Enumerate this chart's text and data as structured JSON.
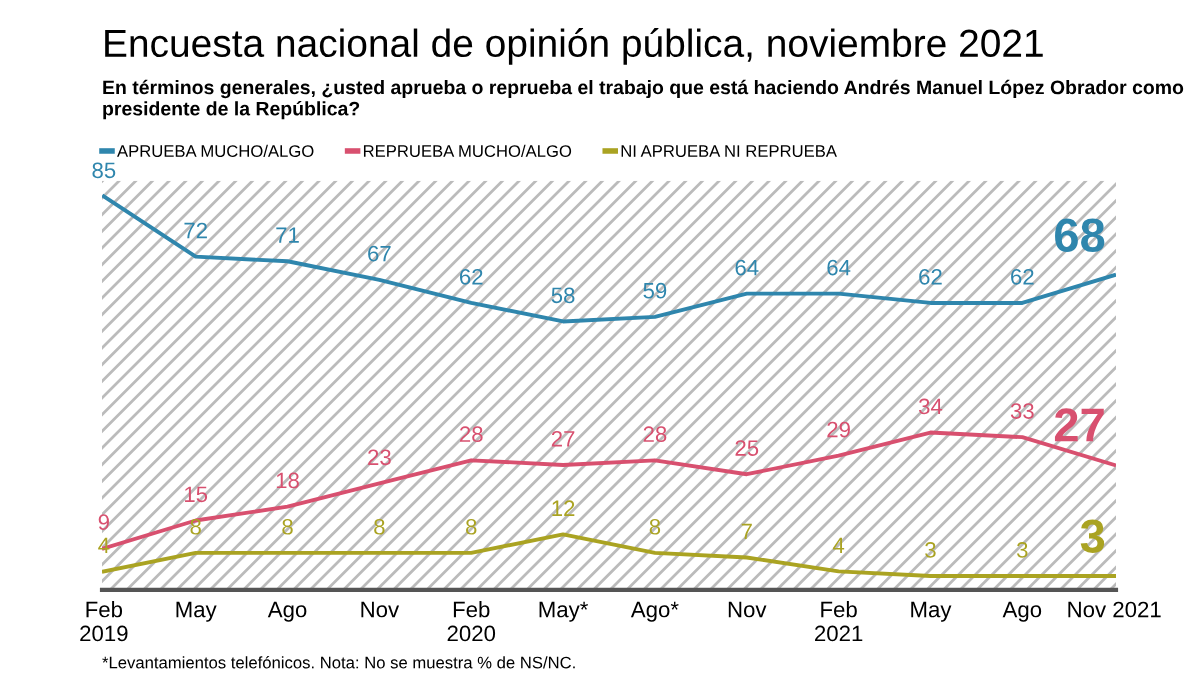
{
  "chart_data": {
    "type": "line",
    "title": "Encuesta nacional de opinión pública, noviembre 2021",
    "subtitle": "En términos generales, ¿usted aprueba o reprueba el trabajo que está haciendo Andrés Manuel López Obrador como presidente de la República?",
    "categories": [
      "Feb\n2019",
      "May",
      "Ago",
      "Nov",
      "Feb\n2020",
      "May*",
      "Ago*",
      "Nov",
      "Feb\n2021",
      "May",
      "Ago",
      "Nov 2021"
    ],
    "series": [
      {
        "name": "APRUEBA MUCHO/ALGO",
        "color": "#2f86ad",
        "values": [
          85,
          72,
          71,
          67,
          62,
          58,
          59,
          64,
          64,
          62,
          62,
          68
        ]
      },
      {
        "name": "REPRUEBA MUCHO/ALGO",
        "color": "#d8506f",
        "values": [
          9,
          15,
          18,
          23,
          28,
          27,
          28,
          25,
          29,
          34,
          33,
          27
        ]
      },
      {
        "name": "NI APRUEBA NI REPRUEBA",
        "color": "#aaa322",
        "values": [
          4,
          8,
          8,
          8,
          8,
          12,
          8,
          7,
          4,
          3,
          3,
          3
        ]
      }
    ],
    "data_labels": true,
    "legend": "top left",
    "grid": false,
    "marker": "none",
    "line_style": "solid",
    "annotations": [
      "*Levantamientos telefónicos. Nota: No se muestra % de NS/NC."
    ]
  }
}
